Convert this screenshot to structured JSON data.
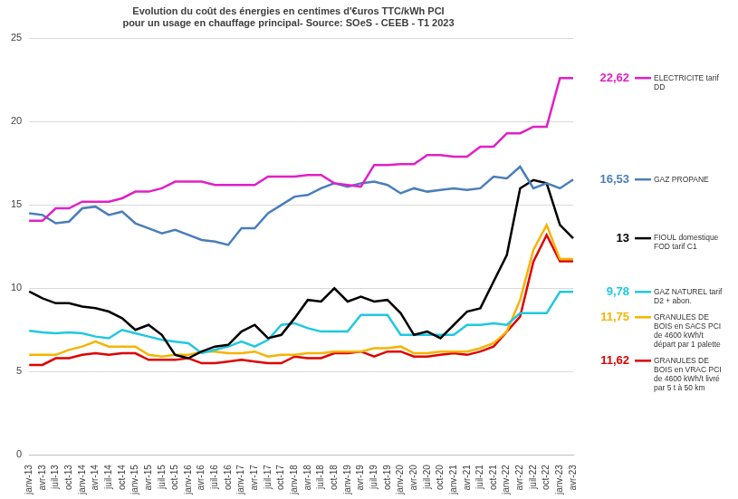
{
  "chart_data": {
    "type": "line",
    "title": [
      "Evolution du coût des énergies en centimes d'€uros TTC/kWh PCI",
      "pour un usage en chauffage principal- Source: SOeS - CEEB - T1 2023"
    ],
    "categories": [
      "janv-13",
      "avr-13",
      "juil-13",
      "oct-13",
      "janv-14",
      "avr-14",
      "juil-14",
      "oct-14",
      "janv-15",
      "avr-15",
      "juil-15",
      "oct-15",
      "janv-16",
      "avr-16",
      "juil-16",
      "oct-16",
      "janv-17",
      "avr-17",
      "juil-17",
      "oct-17",
      "janv-18",
      "avr-18",
      "juil-18",
      "oct-18",
      "janv-19",
      "avr-19",
      "juil-19",
      "oct-19",
      "janv-20",
      "avr-20",
      "juil-20",
      "oct-20",
      "janv-21",
      "avr-21",
      "juil-21",
      "oct-21",
      "janv-22",
      "avr-22",
      "juil-22",
      "oct-22",
      "janv-23",
      "avr-23"
    ],
    "series": [
      {
        "name": "ELECTRICITE tarif DD",
        "color": "#e020c8",
        "end_label": {
          "value": 22.62,
          "label": "22,62"
        },
        "values": [
          14.05,
          14.05,
          14.8,
          14.8,
          15.2,
          15.2,
          15.2,
          15.4,
          15.8,
          15.8,
          16.0,
          16.4,
          16.4,
          16.4,
          16.2,
          16.2,
          16.2,
          16.2,
          16.7,
          16.7,
          16.7,
          16.8,
          16.8,
          16.3,
          16.2,
          16.1,
          17.4,
          17.4,
          17.45,
          17.45,
          18.0,
          18.0,
          17.9,
          17.9,
          18.5,
          18.5,
          19.3,
          19.3,
          19.7,
          19.7,
          22.62,
          22.62
        ]
      },
      {
        "name": "GAZ PROPANE",
        "color": "#4a7ebb",
        "end_label": {
          "value": 16.53,
          "label": "16,53"
        },
        "values": [
          14.5,
          14.4,
          13.9,
          14.0,
          14.8,
          14.9,
          14.4,
          14.6,
          13.9,
          13.6,
          13.3,
          13.5,
          13.2,
          12.9,
          12.8,
          12.6,
          13.6,
          13.6,
          14.5,
          15.0,
          15.5,
          15.6,
          16.0,
          16.3,
          16.1,
          16.3,
          16.4,
          16.2,
          15.7,
          16.0,
          15.8,
          15.9,
          16.0,
          15.9,
          16.0,
          16.7,
          16.6,
          17.3,
          16.0,
          16.3,
          16.0,
          16.53
        ]
      },
      {
        "name": "FIOUL domestique FOD tarif C1",
        "color": "#000000",
        "end_label": {
          "value": 13,
          "label": "13"
        },
        "values": [
          9.8,
          9.4,
          9.1,
          9.1,
          8.9,
          8.8,
          8.6,
          8.2,
          7.5,
          7.8,
          7.2,
          6.0,
          5.8,
          6.2,
          6.5,
          6.6,
          7.4,
          7.8,
          7.0,
          7.2,
          8.2,
          9.3,
          9.2,
          10.0,
          9.2,
          9.5,
          9.2,
          9.3,
          8.5,
          7.2,
          7.4,
          7.0,
          7.8,
          8.6,
          8.8,
          10.4,
          12.0,
          16.0,
          16.5,
          16.3,
          13.8,
          13.0
        ]
      },
      {
        "name": "GAZ NATUREL tarif D2 + abon.",
        "color": "#1fc8e0",
        "end_label": {
          "value": 9.78,
          "label": "9,78"
        },
        "values": [
          7.45,
          7.35,
          7.3,
          7.35,
          7.3,
          7.1,
          7.0,
          7.5,
          7.3,
          7.1,
          6.9,
          6.8,
          6.7,
          6.1,
          6.3,
          6.5,
          6.8,
          6.5,
          6.9,
          7.8,
          7.9,
          7.6,
          7.4,
          7.4,
          7.4,
          8.4,
          8.4,
          8.4,
          7.2,
          7.2,
          7.2,
          7.2,
          7.2,
          7.8,
          7.8,
          7.9,
          7.8,
          8.5,
          8.5,
          8.5,
          9.78,
          9.78
        ]
      },
      {
        "name": "GRANULES DE BOIS en SACS PCI de 4600 kWh/t départ par 1 palette",
        "color": "#f5b400",
        "end_label": {
          "value": 11.75,
          "label": "11,75"
        },
        "values": [
          6.0,
          6.0,
          6.0,
          6.3,
          6.5,
          6.8,
          6.5,
          6.5,
          6.5,
          6.0,
          5.9,
          6.0,
          6.0,
          6.2,
          6.2,
          6.1,
          6.1,
          6.2,
          5.9,
          6.0,
          6.0,
          6.1,
          6.1,
          6.2,
          6.2,
          6.2,
          6.4,
          6.4,
          6.5,
          6.1,
          6.1,
          6.2,
          6.2,
          6.2,
          6.4,
          6.7,
          7.4,
          9.3,
          12.3,
          13.8,
          11.75,
          11.75
        ]
      },
      {
        "name": "GRANULES DE BOIS en VRAC PCI de 4600 kWh/t livré par 5 t à 50 km",
        "color": "#e00000",
        "end_label": {
          "value": 11.62,
          "label": "11,62"
        },
        "values": [
          5.4,
          5.4,
          5.8,
          5.8,
          6.0,
          6.1,
          6.0,
          6.1,
          6.1,
          5.7,
          5.7,
          5.7,
          5.8,
          5.5,
          5.5,
          5.6,
          5.7,
          5.6,
          5.5,
          5.5,
          5.9,
          5.8,
          5.8,
          6.1,
          6.1,
          6.2,
          5.9,
          6.2,
          6.2,
          5.9,
          5.9,
          6.0,
          6.1,
          6.0,
          6.2,
          6.5,
          7.4,
          8.3,
          11.6,
          13.2,
          11.62,
          11.62
        ]
      }
    ],
    "ylim": [
      0,
      25
    ],
    "yticks": [
      0,
      5,
      10,
      15,
      20,
      25
    ],
    "grid": true
  }
}
